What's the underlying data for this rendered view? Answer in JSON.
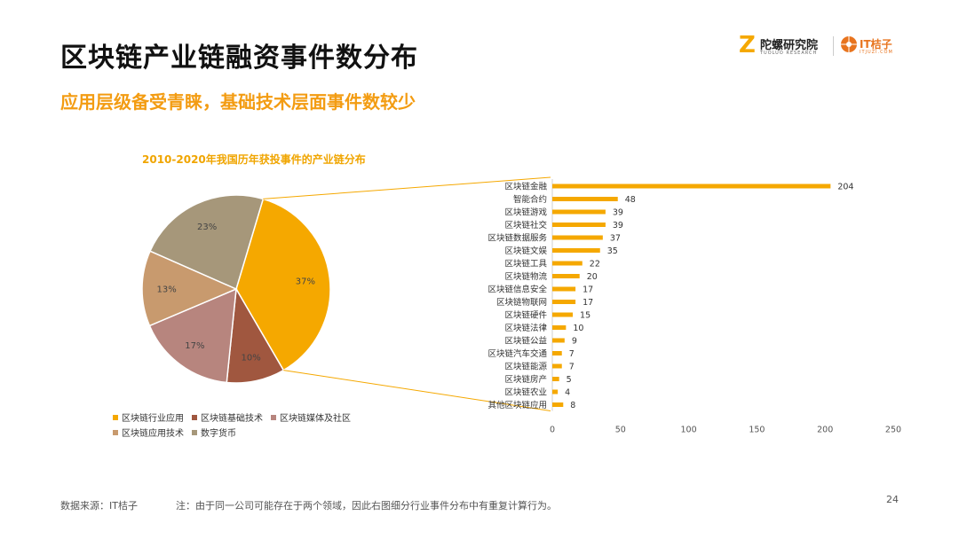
{
  "header": {
    "title": "区块链产业链融资事件数分布",
    "subtitle": "应用层级备受青睐，基础技术层面事件数较少"
  },
  "logo": {
    "mark": "Z",
    "name_cn": "陀螺研究院",
    "name_en": "TUOLUO RESEARCH",
    "partner": "IT桔子",
    "partner_en": "ITJUZI.COM"
  },
  "footer": {
    "source": "数据来源：IT桔子",
    "note": "注：由于同一公司可能存在于两个领域，因此右图细分行业事件分布中有重复计算行为。",
    "page": "24"
  },
  "chart_data": [
    {
      "type": "pie",
      "title": "2010-2020年我国历年获投事件的产业链分布",
      "legend_position": "bottom",
      "slices": [
        {
          "label": "区块链行业应用",
          "value": 37,
          "display": "37%",
          "color": "#f5a800"
        },
        {
          "label": "区块链基础技术",
          "value": 10,
          "display": "10%",
          "color": "#a0573f"
        },
        {
          "label": "区块链媒体及社区",
          "value": 17,
          "display": "17%",
          "color": "#b7857e"
        },
        {
          "label": "区块链应用技术",
          "value": 13,
          "display": "13%",
          "color": "#c89a6e"
        },
        {
          "label": "数字货币",
          "value": 23,
          "display": "23%",
          "color": "#a6977a"
        }
      ]
    },
    {
      "type": "bar",
      "orientation": "horizontal",
      "color": "#f5a800",
      "xlim": [
        0,
        250
      ],
      "xticks": [
        0,
        50,
        100,
        150,
        200,
        250
      ],
      "grid": false,
      "categories": [
        "区块链金融",
        "智能合约",
        "区块链游戏",
        "区块链社交",
        "区块链数据服务",
        "区块链文娱",
        "区块链工具",
        "区块链物流",
        "区块链信息安全",
        "区块链物联网",
        "区块链硬件",
        "区块链法律",
        "区块链公益",
        "区块链汽车交通",
        "区块链能源",
        "区块链房产",
        "区块链农业",
        "其他区块链应用"
      ],
      "values": [
        204,
        48,
        39,
        39,
        37,
        35,
        22,
        20,
        17,
        17,
        15,
        10,
        9,
        7,
        7,
        5,
        4,
        8
      ]
    }
  ]
}
